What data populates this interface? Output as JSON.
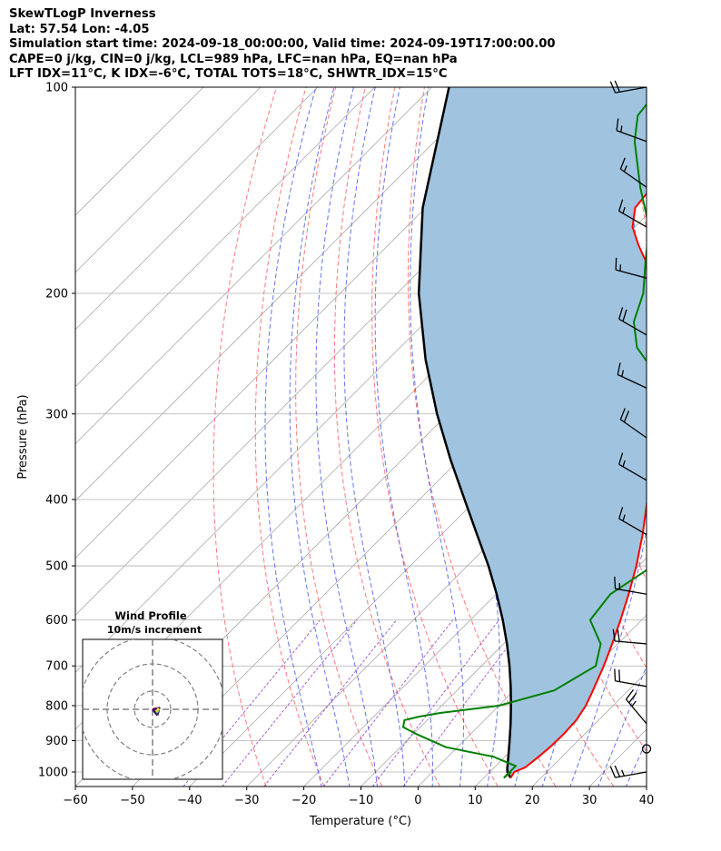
{
  "header": {
    "line1": "SkewTLogP Inverness",
    "line2": "Lat: 57.54   Lon: -4.05",
    "line3": "Simulation start time: 2024-09-18_00:00:00, Valid time: 2024-09-19T17:00:00.00",
    "line4": "CAPE=0 j/kg, CIN=0 j/kg, LCL=989 hPa, LFC=nan hPa, EQ=nan hPa",
    "line5": "LFT IDX=11°C, K IDX=-6°C, TOTAL TOTS=18°C, SHWTR_IDX=15°C"
  },
  "chart_data": {
    "type": "skewt-logp",
    "xlabel": "Temperature (°C)",
    "ylabel": "Pressure (hPa)",
    "xlim": [
      -60,
      40
    ],
    "ylim": [
      1050,
      100
    ],
    "x_ticks": [
      -60,
      -50,
      -40,
      -30,
      -20,
      -10,
      0,
      10,
      20,
      30,
      40
    ],
    "x_tick_labels": [
      "−60",
      "−50",
      "−40",
      "−30",
      "−20",
      "−10",
      "0",
      "10",
      "20",
      "30",
      "40"
    ],
    "y_ticks": [
      1000,
      900,
      800,
      700,
      600,
      500,
      400,
      300,
      200,
      100
    ],
    "grid": true,
    "colors": {
      "temperature": "#ff0000",
      "dewpoint": "#008000",
      "parcel": "#000000",
      "shade": "#a0c4df",
      "dry_adiabats": "#ff6060",
      "moist_adiabats": "#4a5cf0",
      "mixing_ratio": "#9b4fcf",
      "isotherms": "#aaaaaa"
    },
    "temperature": {
      "pressure": [
        1020,
        1000,
        985,
        950,
        920,
        880,
        840,
        800,
        760,
        700,
        650,
        600,
        550,
        500,
        450,
        400,
        350,
        300,
        260,
        220,
        200,
        185,
        170,
        160,
        150,
        140,
        130,
        120,
        110,
        100
      ],
      "values": [
        14.7,
        14.3,
        15.4,
        15.9,
        16.2,
        16.3,
        16.1,
        15.2,
        13.8,
        11.4,
        9.0,
        6.3,
        3.2,
        -0.4,
        -4.8,
        -10.1,
        -16.1,
        -23.6,
        -31.0,
        -39.2,
        -44.0,
        -49.8,
        -56.2,
        -60.4,
        -63.3,
        -64.0,
        -66.0,
        -68.4,
        -70.7,
        -73.8
      ]
    },
    "dewpoint": {
      "pressure": [
        1000,
        1020,
        980,
        950,
        920,
        880,
        860,
        840,
        830,
        820,
        800,
        760,
        700,
        650,
        600,
        550,
        500,
        450,
        400,
        350,
        330,
        300,
        270,
        240,
        220,
        200,
        180,
        160,
        140,
        120,
        110,
        100
      ],
      "values": [
        13.8,
        13.5,
        13.5,
        8.0,
        -2.0,
        -9.5,
        -13.0,
        -14.0,
        -12.0,
        -9.0,
        0.0,
        7.0,
        10.0,
        7.0,
        1.0,
        0.0,
        2.5,
        -2.0,
        -8.0,
        -13.0,
        -15.5,
        -21.0,
        -28.0,
        -38.5,
        -43.6,
        -46.9,
        -52.0,
        -57.5,
        -66.0,
        -75.0,
        -79.0,
        -80.0
      ]
    },
    "parcel": {
      "pressure": [
        1020,
        1000,
        989,
        950,
        900,
        850,
        800,
        750,
        700,
        650,
        600,
        550,
        500,
        450,
        400,
        350,
        300,
        250,
        200,
        150,
        100
      ],
      "values": [
        14.7,
        13.1,
        12.5,
        10.6,
        8.0,
        5.2,
        2.1,
        -1.3,
        -5.1,
        -9.4,
        -14.3,
        -19.9,
        -26.3,
        -33.8,
        -42.1,
        -51.5,
        -61.9,
        -73.4,
        -86.2,
        -100.5,
        -117.0
      ]
    },
    "wind_barbs": {
      "pressure": [
        1000,
        925,
        850,
        750,
        650,
        550,
        450,
        375,
        325,
        275,
        230,
        190,
        160,
        140,
        120,
        100
      ],
      "speed_kt": [
        25,
        0,
        25,
        20,
        20,
        15,
        15,
        15,
        20,
        15,
        20,
        15,
        15,
        15,
        15,
        20
      ],
      "direction_deg": [
        260,
        0,
        320,
        280,
        275,
        280,
        300,
        300,
        305,
        295,
        300,
        285,
        300,
        305,
        290,
        260
      ]
    },
    "inset": {
      "title": "Wind Profile",
      "subtitle": "10m/s increment"
    }
  }
}
